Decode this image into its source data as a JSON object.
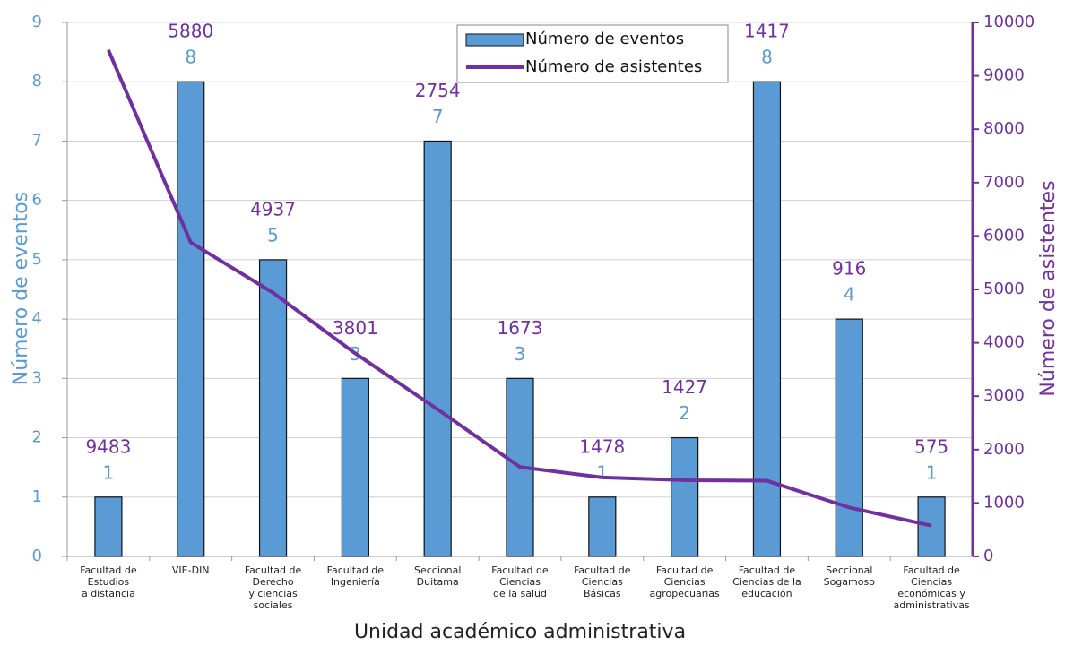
{
  "chart_data": {
    "type": "bar",
    "x_label": "Unidad académico administrativa",
    "y_label": "Número de eventos",
    "y2_label": "Número de asistentes",
    "categories": [
      "Facultad de\nEstudios\na distancia",
      "VIE-DIN",
      "Facultad de\nDerecho\ny ciencias\nsociales",
      "Facultad de\nIngeniería",
      "Seccional\nDuitama",
      "Facultad de\nCiencias\nde la salud",
      "Facultad de\nCiencias\nBásicas",
      "Facultad de\nCiencias\nagropecuarias",
      "Facultad de\nCiencias de la\neducación",
      "Seccional\nSogamoso",
      "Facultad de\nCiencias\neconómicas y\nadministrativas"
    ],
    "series": [
      {
        "name": "Número de eventos",
        "type": "bar",
        "color": "#5b9bd5",
        "values": [
          1,
          8,
          5,
          3,
          7,
          3,
          1,
          2,
          8,
          4,
          1
        ]
      },
      {
        "name": "Número de asistentes",
        "type": "line",
        "axis": "y2",
        "color": "#7030a0",
        "values": [
          9483,
          5880,
          4937,
          3801,
          2754,
          1673,
          1478,
          1427,
          1417,
          916,
          575
        ]
      }
    ],
    "ylim": [
      0,
      9
    ],
    "yticks": [
      0,
      1,
      2,
      3,
      4,
      5,
      6,
      7,
      8,
      9
    ],
    "y2lim": [
      0,
      10000
    ],
    "y2ticks": [
      0,
      1000,
      2000,
      3000,
      4000,
      5000,
      6000,
      7000,
      8000,
      9000,
      10000
    ],
    "grid": true,
    "legend": "top"
  }
}
